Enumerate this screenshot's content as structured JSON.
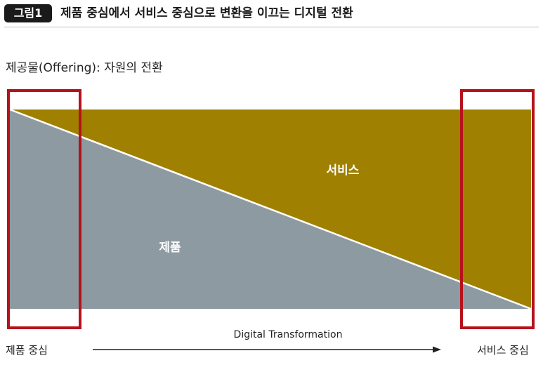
{
  "header": {
    "badge": "그림1",
    "title": "제품 중심에서 서비스 중심으로 변환을 이끄는 디지털 전환"
  },
  "subtitle": "제공물(Offering): 자원의 전환",
  "regions": {
    "service_label": "서비스",
    "product_label": "제품"
  },
  "axis": {
    "start_label": "제품 중심",
    "end_label": "서비스 중심",
    "arrow_label": "Digital Transformation"
  },
  "colors": {
    "service": "#a08000",
    "product": "#8e9aa1",
    "highlight_frame": "#b5121b",
    "divider": "#ffffff",
    "arrow": "#222222"
  }
}
